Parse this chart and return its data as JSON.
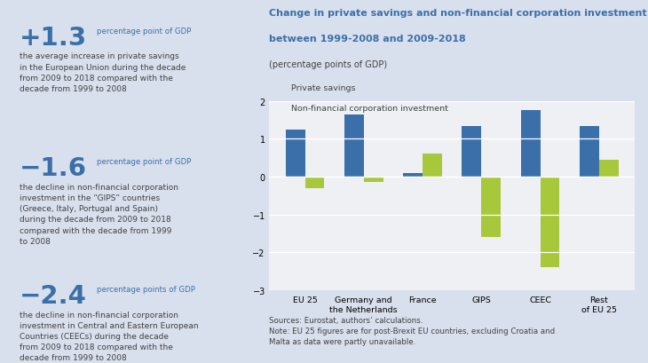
{
  "title_line1": "Change in private savings and non-financial corporation investment",
  "title_line2": "between 1999-2008 and 2009-2018",
  "subtitle": "(percentage points of GDP)",
  "categories": [
    "EU 25",
    "Germany and\nthe Netherlands",
    "France",
    "GIPS",
    "CEEC",
    "Rest\nof EU 25"
  ],
  "private_savings": [
    1.25,
    1.65,
    0.1,
    1.35,
    1.75,
    1.35
  ],
  "nfc_investment": [
    -0.3,
    -0.15,
    0.62,
    -1.6,
    -2.4,
    0.45
  ],
  "bar_color_savings": "#3b6faa",
  "bar_color_investment": "#a8c83b",
  "background_color": "#d9e0ed",
  "chart_bg_color": "#eef0f4",
  "ylim": [
    -3,
    2
  ],
  "yticks": [
    -3,
    -2,
    -1,
    0,
    1,
    2
  ],
  "legend_savings": "Private savings",
  "legend_investment": "Non-financial corporation investment",
  "title_color": "#3b6faa",
  "text_color": "#404040",
  "sources_text": "Sources: Eurostat, authors’ calculations.\nNote: EU 25 figures are for post-Brexit EU countries, excluding Croatia and\nMalta as data were partly unavailable.",
  "left_panel_stats": [
    {
      "number": "+1.3",
      "unit": "percentage point of GDP",
      "description": "the average increase in private savings\nin the European Union during the decade\nfrom 2009 to 2018 compared with the\ndecade from 1999 to 2008"
    },
    {
      "number": "−1.6",
      "unit": "percentage point of GDP",
      "description": "the decline in non-financial corporation\ninvestment in the “GIPS” countries\n(Greece, Italy, Portugal and Spain)\nduring the decade from 2009 to 2018\ncompared with the decade from 1999\nto 2008"
    },
    {
      "number": "−2.4",
      "unit": "percentage points of GDP",
      "description": "the decline in non-financial corporation\ninvestment in Central and Eastern European\nCountries (CEECs) during the decade\nfrom 2009 to 2018 compared with the\ndecade from 1999 to 2008"
    }
  ]
}
